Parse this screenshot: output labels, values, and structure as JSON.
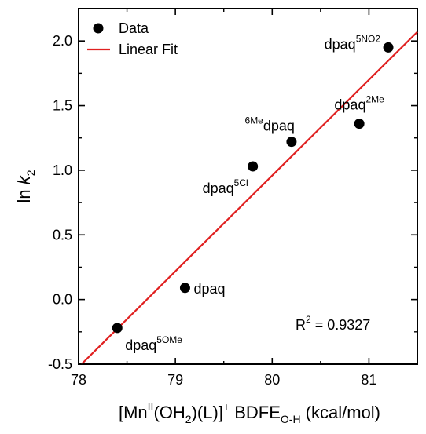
{
  "chart_data": {
    "type": "scatter",
    "xlabel": {
      "main": "[Mn",
      "sup1": "II",
      "mid1": "(OH",
      "sub1": "2",
      "mid2": ")(L)]",
      "sup2": "+",
      "mid3": " BDFE",
      "sub2": "O-H",
      "tail": " (kcal/mol)"
    },
    "ylabel": {
      "main": "ln ",
      "italic": "k",
      "sub": "2"
    },
    "xlim": [
      78,
      81.5
    ],
    "ylim": [
      -0.5,
      2.25
    ],
    "x_ticks": [
      78,
      79,
      80,
      81
    ],
    "x_tick_labels": [
      "78",
      "79",
      "80",
      "81"
    ],
    "y_ticks": [
      -0.5,
      0.0,
      0.5,
      1.0,
      1.5,
      2.0
    ],
    "y_tick_labels": [
      "-0.5",
      "0.0",
      "0.5",
      "1.0",
      "1.5",
      "2.0"
    ],
    "grid": false,
    "legend_position": "top-left",
    "legend": [
      {
        "label": "Data",
        "kind": "marker",
        "color": "#000000"
      },
      {
        "label": "Linear Fit",
        "kind": "line",
        "color": "#e02020"
      }
    ],
    "series": [
      {
        "name": "Data",
        "color": "#000000",
        "points": [
          {
            "x": 78.4,
            "y": -0.22,
            "label_base": "dpaq",
            "label_sup": "5OMe",
            "label_pre": "",
            "label_pos": "below-right"
          },
          {
            "x": 79.1,
            "y": 0.09,
            "label_base": "dpaq",
            "label_sup": "",
            "label_pre": "",
            "label_pos": "right"
          },
          {
            "x": 79.8,
            "y": 1.03,
            "label_base": "dpaq",
            "label_sup": "5Cl",
            "label_pre": "",
            "label_pos": "below-left"
          },
          {
            "x": 80.2,
            "y": 1.22,
            "label_base": "dpaq",
            "label_sup": "",
            "label_pre": "6Me",
            "label_pos": "above-left"
          },
          {
            "x": 80.9,
            "y": 1.36,
            "label_base": "dpaq",
            "label_sup": "2Me",
            "label_pre": "",
            "label_pos": "above"
          },
          {
            "x": 81.2,
            "y": 1.95,
            "label_base": "dpaq",
            "label_sup": "5NO2",
            "label_pre": "",
            "label_pos": "left"
          }
        ]
      },
      {
        "name": "Linear Fit",
        "color": "#e02020",
        "line": {
          "x": [
            78.03,
            81.5
          ],
          "y": [
            -0.5,
            2.07
          ]
        }
      }
    ],
    "annotations": [
      {
        "text_main": "R",
        "text_sup": "2",
        "text_tail": " = 0.9327"
      }
    ]
  }
}
